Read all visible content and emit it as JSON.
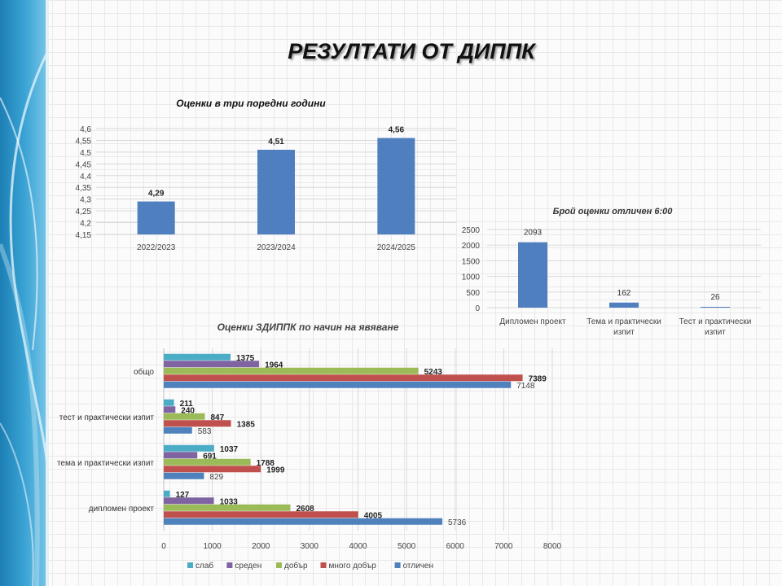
{
  "page": {
    "title": "РЕЗУЛТАТИ ОТ ДИППК"
  },
  "colors": {
    "bar_blue": "#4f7fbf",
    "slab": "#4bacc6",
    "sreden": "#8064a2",
    "dobar": "#9bbb59",
    "mnogo_dobar": "#c0504d",
    "otlichen": "#4f81bd"
  },
  "chart_data": [
    {
      "id": "years",
      "type": "bar",
      "title": "Оценки в три поредни години",
      "categories": [
        "2022/2023",
        "2023/2024",
        "2024/2025"
      ],
      "values": [
        4.29,
        4.51,
        4.56
      ],
      "value_labels": [
        "4,29",
        "4,51",
        "4,56"
      ],
      "ylim": [
        4.15,
        4.6
      ],
      "yticks": [
        {
          "value": 4.15,
          "label": "4,15"
        },
        {
          "value": 4.2,
          "label": "4,2"
        },
        {
          "value": 4.25,
          "label": "4,25"
        },
        {
          "value": 4.3,
          "label": "4,3"
        },
        {
          "value": 4.35,
          "label": "4,35"
        },
        {
          "value": 4.4,
          "label": "4,4"
        },
        {
          "value": 4.45,
          "label": "4,45"
        },
        {
          "value": 4.5,
          "label": "4,5"
        },
        {
          "value": 4.55,
          "label": "4,55"
        },
        {
          "value": 4.6,
          "label": "4,6"
        }
      ],
      "grid": true
    },
    {
      "id": "excellent",
      "type": "bar",
      "title": "Брой оценки отличен 6:00",
      "categories": [
        [
          "Дипломен проект"
        ],
        [
          "Тема и практически",
          "изпит"
        ],
        [
          "Тест и практически",
          "изпит"
        ]
      ],
      "values": [
        2093,
        162,
        26
      ],
      "ylim": [
        0,
        2500
      ],
      "yticks": [
        0,
        500,
        1000,
        1500,
        2000,
        2500
      ],
      "grid": true
    },
    {
      "id": "by_type",
      "type": "bar",
      "orientation": "horizontal",
      "title": "Оценки ЗДИППК по начин на явяване",
      "categories": [
        "общо",
        "тест и практически изпит",
        "тема и практически изпит",
        "дипломен проект"
      ],
      "series": [
        {
          "name": "слаб",
          "color_key": "slab",
          "values": [
            1375,
            211,
            1037,
            127
          ],
          "bold": true
        },
        {
          "name": "среден",
          "color_key": "sreden",
          "values": [
            1964,
            240,
            691,
            1033
          ],
          "bold": true
        },
        {
          "name": "добър",
          "color_key": "dobar",
          "values": [
            5243,
            847,
            1788,
            2608
          ],
          "bold": true
        },
        {
          "name": "много добър",
          "color_key": "mnogo_dobar",
          "values": [
            7389,
            1385,
            1999,
            4005
          ],
          "bold": true
        },
        {
          "name": "отличен",
          "color_key": "otlichen",
          "values": [
            7148,
            583,
            829,
            5736
          ],
          "bold": false
        }
      ],
      "xlim": [
        0,
        8000
      ],
      "xticks": [
        0,
        1000,
        2000,
        3000,
        4000,
        5000,
        6000,
        7000,
        8000
      ],
      "legend_position": "bottom",
      "grid": true
    }
  ]
}
